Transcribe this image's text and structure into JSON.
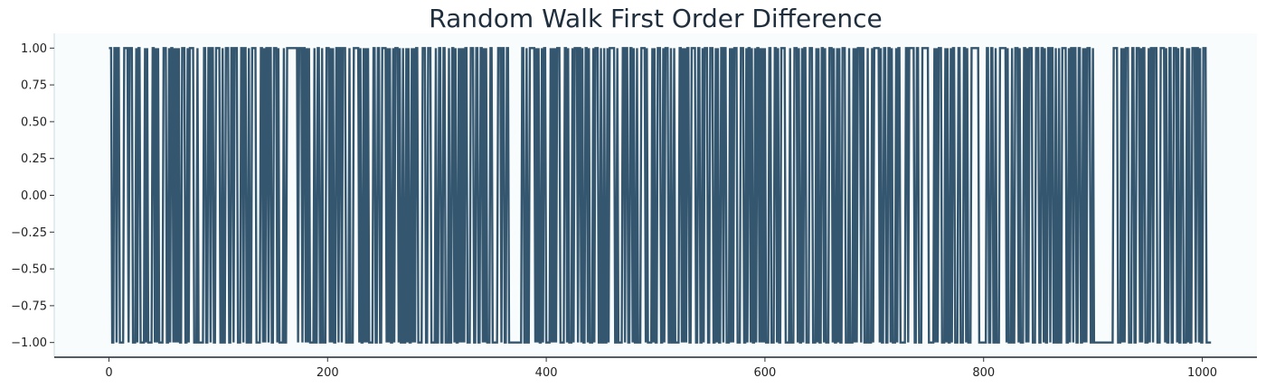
{
  "chart_data": {
    "type": "line",
    "title": "Random Walk First Order Difference",
    "xlabel": "",
    "ylabel": "",
    "xlim": [
      -50,
      1050
    ],
    "ylim": [
      -1.1,
      1.1
    ],
    "x_ticks": [
      0,
      200,
      400,
      600,
      800,
      1000
    ],
    "x_tick_labels": [
      "0",
      "200",
      "400",
      "600",
      "800",
      "1000"
    ],
    "y_ticks": [
      1.0,
      0.75,
      0.5,
      0.25,
      0.0,
      -0.25,
      -0.5,
      -0.75,
      -1.0
    ],
    "y_tick_labels": [
      "1.00",
      "0.75",
      "0.50",
      "0.25",
      "0.00",
      "−0.25",
      "−0.50",
      "−0.75",
      "−1.00"
    ],
    "grid": false,
    "line_color": "#34566f",
    "plot_background": "#f8fcfd",
    "series": [
      {
        "x_start": 0,
        "step": 1,
        "values": [
          1,
          1,
          1,
          -1,
          -1,
          1,
          1,
          -1,
          1,
          1,
          -1,
          -1,
          -1,
          -1,
          1,
          1,
          1,
          1,
          -1,
          1,
          1,
          1,
          -1,
          -1,
          -1,
          1,
          -1,
          1,
          1,
          -1,
          -1,
          -1,
          -1,
          1,
          -1,
          1,
          -1,
          -1,
          -1,
          -1,
          1,
          1,
          -1,
          1,
          -1,
          1,
          -1,
          -1,
          -1,
          -1,
          1,
          1,
          1,
          -1,
          -1,
          1,
          -1,
          1,
          1,
          -1,
          1,
          -1,
          1,
          -1,
          1,
          -1,
          -1,
          1,
          1,
          1,
          -1,
          -1,
          1,
          -1,
          1,
          1,
          1,
          1,
          -1,
          -1,
          -1,
          1,
          -1,
          -1,
          -1,
          -1,
          -1,
          1,
          1,
          -1,
          -1,
          1,
          1,
          -1,
          1,
          1,
          -1,
          -1,
          1,
          1,
          1,
          1,
          -1,
          -1,
          1,
          -1,
          -1,
          1,
          1,
          1,
          -1,
          -1,
          1,
          1,
          -1,
          1,
          1,
          1,
          -1,
          -1,
          -1,
          1,
          1,
          -1,
          1,
          1,
          -1,
          -1,
          1,
          -1,
          -1,
          1,
          1,
          1,
          1,
          -1,
          -1,
          -1,
          -1,
          1,
          1,
          -1,
          1,
          -1,
          1,
          1,
          -1,
          1,
          1,
          -1,
          -1,
          1,
          1,
          1,
          -1,
          1,
          -1,
          -1,
          -1,
          -1,
          1,
          -1,
          -1,
          1,
          1,
          1,
          1,
          1,
          1,
          1,
          1,
          1,
          1,
          -1,
          1,
          1,
          1,
          -1,
          1,
          1,
          -1,
          1,
          -1,
          1,
          -1,
          -1,
          -1,
          -1,
          1,
          -1,
          -1,
          1,
          1,
          -1,
          -1,
          1,
          -1,
          -1,
          -1,
          1,
          1,
          1,
          -1,
          1,
          -1,
          1,
          -1,
          -1,
          1,
          1,
          -1,
          1,
          1,
          -1,
          1,
          1,
          1,
          -1,
          -1,
          -1,
          1,
          -1,
          -1,
          -1,
          1,
          1,
          1,
          1,
          1,
          -1,
          1,
          -1,
          -1,
          1,
          -1,
          1,
          -1,
          1,
          -1,
          -1,
          -1,
          -1,
          1,
          1,
          -1,
          -1,
          1,
          1,
          -1,
          -1,
          1,
          1,
          1,
          1,
          -1,
          1,
          -1,
          1,
          -1,
          -1,
          1,
          -1,
          1,
          1,
          1,
          -1,
          1,
          -1,
          -1,
          1,
          -1,
          -1,
          1,
          -1,
          1,
          -1,
          -1,
          1,
          -1,
          1,
          -1,
          1,
          1,
          -1,
          -1,
          -1,
          -1,
          1,
          1,
          1,
          -1,
          -1,
          1,
          1,
          1,
          -1,
          -1,
          -1,
          -1,
          1,
          -1,
          -1,
          1,
          1,
          -1,
          -1,
          1,
          1,
          -1,
          -1,
          -1,
          1,
          -1,
          -1,
          1,
          1,
          -1,
          1,
          -1,
          -1,
          1,
          -1,
          1,
          -1,
          1,
          -1,
          1,
          1,
          -1,
          -1,
          -1,
          1,
          1,
          1,
          -1,
          -1,
          1,
          1,
          -1,
          -1,
          1,
          1,
          -1,
          1,
          -1,
          1,
          -1,
          -1,
          -1,
          1,
          1,
          -1,
          -1,
          -1,
          -1,
          -1,
          1,
          1,
          1,
          -1,
          1,
          1,
          -1,
          -1,
          1,
          1,
          -1,
          -1,
          -1,
          -1,
          -1,
          -1,
          -1,
          -1,
          -1,
          -1,
          -1,
          -1,
          1,
          1,
          -1,
          -1,
          1,
          -1,
          -1,
          1,
          1,
          1,
          1,
          1,
          -1,
          1,
          -1,
          1,
          -1,
          -1,
          1,
          -1,
          1,
          1,
          -1,
          -1,
          -1,
          -1,
          1,
          -1,
          1,
          -1,
          1,
          -1,
          1,
          1,
          1,
          -1,
          -1,
          -1,
          -1,
          1,
          1,
          -1,
          1,
          -1,
          -1,
          -1,
          1,
          -1,
          1,
          1,
          1,
          -1,
          1,
          1,
          -1,
          1,
          -1,
          -1,
          1,
          1,
          -1,
          1,
          -1,
          -1,
          -1,
          1,
          -1,
          1,
          1,
          1,
          -1,
          -1,
          1,
          -1,
          -1,
          1,
          -1,
          -1,
          1,
          -1,
          1,
          1,
          1,
          1,
          1,
          -1,
          -1,
          1,
          -1,
          -1,
          -1,
          -1,
          1,
          1,
          -1,
          1,
          1,
          -1,
          -1,
          1,
          1,
          -1,
          1,
          -1,
          -1,
          1,
          -1,
          -1,
          -1,
          1,
          1,
          1,
          1,
          -1,
          1,
          -1,
          -1,
          -1,
          -1,
          1,
          -1,
          1,
          -1,
          -1,
          1,
          1,
          1,
          -1,
          -1,
          1,
          -1,
          1,
          1,
          1,
          -1,
          -1,
          1,
          -1,
          -1,
          1,
          -1,
          -1,
          -1,
          -1,
          1,
          1,
          -1,
          1,
          -1,
          1,
          -1,
          1,
          1,
          -1,
          -1,
          1,
          1,
          1,
          1,
          -1,
          -1,
          1,
          1,
          -1,
          -1,
          1,
          -1,
          1,
          1,
          1,
          -1,
          -1,
          1,
          1,
          1,
          -1,
          -1,
          1,
          -1,
          1,
          -1,
          -1,
          1,
          1,
          -1,
          1,
          1,
          -1,
          -1,
          -1,
          1,
          -1,
          1,
          -1,
          1,
          1,
          1,
          -1,
          -1,
          -1,
          1,
          1,
          1,
          -1,
          -1,
          1,
          -1,
          1,
          1,
          -1,
          1,
          -1,
          -1,
          1,
          -1,
          1,
          1,
          -1,
          1,
          -1,
          1,
          -1,
          1,
          -1,
          -1,
          -1,
          1,
          1,
          -1,
          -1,
          -1,
          1,
          1,
          -1,
          1,
          -1,
          -1,
          1,
          1,
          1,
          1,
          -1,
          -1,
          -1,
          -1,
          1,
          -1,
          -1,
          -1,
          1,
          1,
          1,
          -1,
          1,
          -1,
          -1,
          1,
          -1,
          1,
          1,
          -1,
          -1,
          -1,
          1,
          1,
          1,
          -1,
          -1,
          -1,
          1,
          -1,
          1,
          -1,
          -1,
          1,
          1,
          -1,
          1,
          -1,
          -1,
          -1,
          1,
          1,
          1,
          -1,
          1,
          -1,
          -1,
          1,
          -1,
          1,
          -1,
          -1,
          1,
          1,
          1,
          -1,
          -1,
          -1,
          1,
          -1,
          -1,
          -1,
          1,
          -1,
          1,
          -1,
          1,
          1,
          1,
          -1,
          1,
          1,
          -1,
          -1,
          -1,
          1,
          -1,
          -1,
          -1,
          1,
          -1,
          1,
          1,
          1,
          1,
          1,
          -1,
          1,
          -1,
          -1,
          1,
          1,
          -1,
          -1,
          1,
          1,
          -1,
          1,
          -1,
          -1,
          -1,
          1,
          -1,
          1,
          1,
          -1,
          -1,
          -1,
          -1,
          -1,
          1,
          1,
          -1,
          1,
          1,
          1,
          1,
          1,
          -1,
          -1,
          1,
          1,
          -1,
          -1,
          -1,
          1,
          1,
          1,
          1,
          1,
          1,
          -1,
          -1,
          -1,
          -1,
          -1,
          1,
          -1,
          1,
          -1,
          1,
          1,
          1,
          -1,
          -1,
          -1,
          1,
          -1,
          1,
          -1,
          -1,
          1,
          -1,
          1,
          1,
          -1,
          -1,
          -1,
          1,
          1,
          -1,
          -1,
          -1,
          1,
          1,
          -1,
          1,
          -1,
          -1,
          -1,
          1,
          1,
          1,
          1,
          1,
          1,
          1,
          -1,
          -1,
          -1,
          -1,
          -1,
          -1,
          -1,
          1,
          1,
          -1,
          -1,
          1,
          1,
          -1,
          -1,
          1,
          -1,
          -1,
          -1,
          1,
          1,
          1,
          1,
          1,
          1,
          -1,
          1,
          -1,
          -1,
          -1,
          1,
          -1,
          -1,
          1,
          1,
          1,
          -1,
          1,
          -1,
          -1,
          -1,
          1,
          1,
          -1,
          1,
          -1,
          1,
          1,
          1,
          -1,
          -1,
          -1,
          1,
          1,
          1,
          -1,
          -1,
          1,
          1,
          -1,
          1,
          -1,
          -1,
          1,
          1,
          -1,
          1,
          1,
          -1,
          -1,
          1,
          -1,
          -1,
          1,
          -1,
          -1,
          1,
          1,
          1,
          1,
          -1,
          -1,
          1,
          -1,
          1,
          1,
          -1,
          1,
          1,
          -1,
          -1,
          1,
          1,
          -1,
          -1,
          1,
          -1,
          1,
          -1,
          1,
          1,
          1,
          -1,
          -1,
          1,
          -1,
          -1,
          -1,
          -1,
          -1,
          -1,
          -1,
          -1,
          -1,
          -1,
          -1,
          -1,
          -1,
          -1,
          -1,
          -1,
          -1,
          -1,
          1,
          1,
          1,
          1,
          -1,
          -1,
          -1,
          1,
          -1,
          1,
          -1,
          1,
          1,
          1,
          -1,
          -1,
          -1,
          1,
          1,
          -1,
          -1,
          1,
          1,
          1,
          -1,
          1,
          -1,
          1,
          1,
          -1,
          -1,
          -1,
          1,
          -1,
          1,
          1,
          -1,
          1,
          1,
          1,
          -1,
          -1,
          -1,
          1,
          1,
          1,
          1,
          -1,
          1,
          -1,
          -1,
          1,
          1,
          -1,
          -1,
          1,
          1,
          1,
          -1,
          1,
          -1,
          -1,
          1,
          1,
          -1,
          -1,
          -1,
          1,
          -1,
          1,
          -1,
          -1,
          1,
          1,
          1,
          -1,
          1,
          1,
          -1,
          1,
          -1,
          -1,
          1,
          1,
          1,
          -1,
          -1,
          -1,
          -1,
          -1
        ]
      }
    ]
  }
}
